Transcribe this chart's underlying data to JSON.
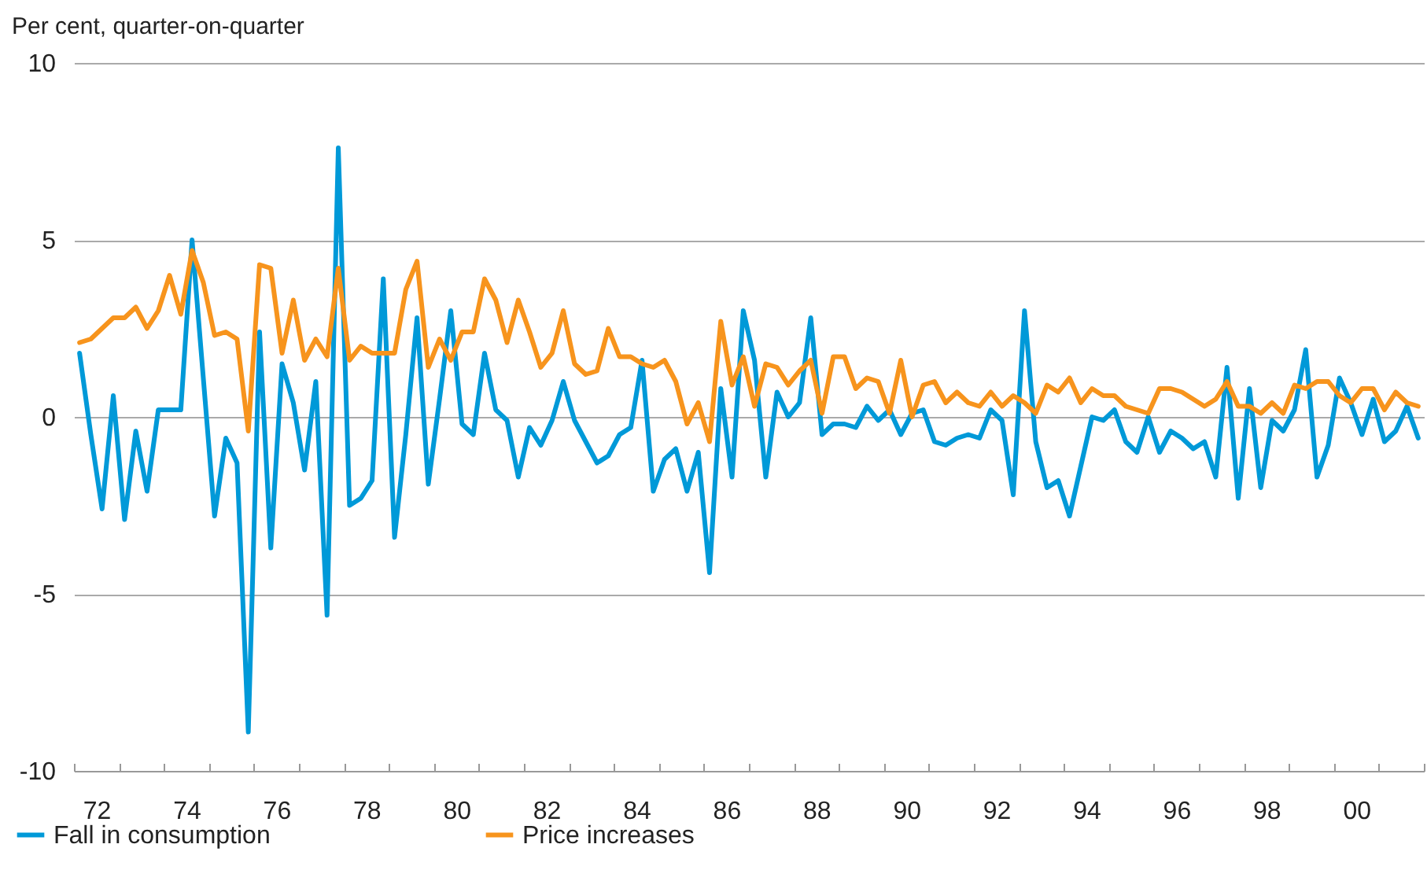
{
  "chart_data": {
    "type": "line",
    "ylabel": "Per cent, quarter-on-quarter",
    "x": [
      1971.625,
      1971.875,
      1972.125,
      1972.375,
      1972.625,
      1972.875,
      1973.125,
      1973.375,
      1973.625,
      1973.875,
      1974.125,
      1974.375,
      1974.625,
      1974.875,
      1975.125,
      1975.375,
      1975.625,
      1975.875,
      1976.125,
      1976.375,
      1976.625,
      1976.875,
      1977.125,
      1977.375,
      1977.625,
      1977.875,
      1978.125,
      1978.375,
      1978.625,
      1978.875,
      1979.125,
      1979.375,
      1979.625,
      1979.875,
      1980.125,
      1980.375,
      1980.625,
      1980.875,
      1981.125,
      1981.375,
      1981.625,
      1981.875,
      1982.125,
      1982.375,
      1982.625,
      1982.875,
      1983.125,
      1983.375,
      1983.625,
      1983.875,
      1984.125,
      1984.375,
      1984.625,
      1984.875,
      1985.125,
      1985.375,
      1985.625,
      1985.875,
      1986.125,
      1986.375,
      1986.625,
      1986.875,
      1987.125,
      1987.375,
      1987.625,
      1987.875,
      1988.125,
      1988.375,
      1988.625,
      1988.875,
      1989.125,
      1989.375,
      1989.625,
      1989.875,
      1990.125,
      1990.375,
      1990.625,
      1990.875,
      1991.125,
      1991.375,
      1991.625,
      1991.875,
      1992.125,
      1992.375,
      1992.625,
      1992.875,
      1993.125,
      1993.375,
      1993.625,
      1993.875,
      1994.125,
      1994.375,
      1994.625,
      1994.875,
      1995.125,
      1995.375,
      1995.625,
      1995.875,
      1996.125,
      1996.375,
      1996.625,
      1996.875,
      1997.125,
      1997.375,
      1997.625,
      1997.875,
      1998.125,
      1998.375,
      1998.625,
      1998.875,
      1999.125,
      1999.375,
      1999.625,
      1999.875,
      2000.125,
      2000.375,
      2000.625,
      2000.875,
      2001.125,
      2001.375
    ],
    "series": [
      {
        "name": "Fall in consumption",
        "color": "#0099d8",
        "values": [
          1.8,
          -0.5,
          -2.6,
          0.6,
          -2.9,
          -0.4,
          -2.1,
          0.2,
          0.2,
          0.2,
          5.0,
          1.1,
          -2.8,
          -0.6,
          -1.3,
          -8.9,
          2.4,
          -3.7,
          1.5,
          0.4,
          -1.5,
          1.0,
          -5.6,
          7.6,
          -2.5,
          -2.3,
          -1.8,
          3.9,
          -3.4,
          -0.5,
          2.8,
          -1.9,
          0.5,
          3.0,
          -0.2,
          -0.5,
          1.8,
          0.2,
          -0.1,
          -1.7,
          -0.3,
          -0.8,
          -0.1,
          1.0,
          -0.1,
          -0.7,
          -1.3,
          -1.1,
          -0.5,
          -0.3,
          1.6,
          -2.1,
          -1.2,
          -0.9,
          -2.1,
          -1.0,
          -4.4,
          0.8,
          -1.7,
          3.0,
          1.6,
          -1.7,
          0.7,
          0.0,
          0.4,
          2.8,
          -0.5,
          -0.2,
          -0.2,
          -0.3,
          0.3,
          -0.1,
          0.2,
          -0.5,
          0.1,
          0.2,
          -0.7,
          -0.8,
          -0.6,
          -0.5,
          -0.6,
          0.2,
          -0.1,
          -2.2,
          3.0,
          -0.7,
          -2.0,
          -1.8,
          -2.8,
          -1.4,
          0.0,
          -0.1,
          0.2,
          -0.7,
          -1.0,
          0.0,
          -1.0,
          -0.4,
          -0.6,
          -0.9,
          -0.7,
          -1.7,
          1.4,
          -2.3,
          0.8,
          -2.0,
          -0.1,
          -0.4,
          0.2,
          1.9,
          -1.7,
          -0.8,
          1.1,
          0.4,
          -0.5,
          0.5,
          -0.7,
          -0.4,
          0.3,
          -0.6
        ]
      },
      {
        "name": "Price increases",
        "color": "#f7941d",
        "values": [
          2.1,
          2.2,
          2.5,
          2.8,
          2.8,
          3.1,
          2.5,
          3.0,
          4.0,
          2.9,
          4.7,
          3.8,
          2.3,
          2.4,
          2.2,
          -0.4,
          4.3,
          4.2,
          1.8,
          3.3,
          1.6,
          2.2,
          1.7,
          4.2,
          1.6,
          2.0,
          1.8,
          1.8,
          1.8,
          3.6,
          4.4,
          1.4,
          2.2,
          1.6,
          2.4,
          2.4,
          3.9,
          3.3,
          2.1,
          3.3,
          2.4,
          1.4,
          1.8,
          3.0,
          1.5,
          1.2,
          1.3,
          2.5,
          1.7,
          1.7,
          1.5,
          1.4,
          1.6,
          1.0,
          -0.2,
          0.4,
          -0.7,
          2.7,
          0.9,
          1.7,
          0.3,
          1.5,
          1.4,
          0.9,
          1.3,
          1.6,
          0.1,
          1.7,
          1.7,
          0.8,
          1.1,
          1.0,
          0.1,
          1.6,
          0.0,
          0.9,
          1.0,
          0.4,
          0.7,
          0.4,
          0.3,
          0.7,
          0.3,
          0.6,
          0.4,
          0.1,
          0.9,
          0.7,
          1.1,
          0.4,
          0.8,
          0.6,
          0.6,
          0.3,
          0.2,
          0.1,
          0.8,
          0.8,
          0.7,
          0.5,
          0.3,
          0.5,
          1.0,
          0.3,
          0.3,
          0.1,
          0.4,
          0.1,
          0.9,
          0.8,
          1.0,
          1.0,
          0.6,
          0.4,
          0.8,
          0.8,
          0.2,
          0.7,
          0.4,
          0.3
        ]
      }
    ],
    "xlim": [
      1971.5,
      2001.5
    ],
    "xticks": [
      {
        "value": 1971.5,
        "label": null
      },
      {
        "value": 1972,
        "label": "72"
      },
      {
        "value": 1972.5,
        "label": null
      },
      {
        "value": 1973.5,
        "label": null
      },
      {
        "value": 1974,
        "label": "74"
      },
      {
        "value": 1974.5,
        "label": null
      },
      {
        "value": 1975.5,
        "label": null
      },
      {
        "value": 1976,
        "label": "76"
      },
      {
        "value": 1976.5,
        "label": null
      },
      {
        "value": 1977.5,
        "label": null
      },
      {
        "value": 1978,
        "label": "78"
      },
      {
        "value": 1978.5,
        "label": null
      },
      {
        "value": 1979.5,
        "label": null
      },
      {
        "value": 1980,
        "label": "80"
      },
      {
        "value": 1980.5,
        "label": null
      },
      {
        "value": 1981.5,
        "label": null
      },
      {
        "value": 1982,
        "label": "82"
      },
      {
        "value": 1982.5,
        "label": null
      },
      {
        "value": 1983.5,
        "label": null
      },
      {
        "value": 1984,
        "label": "84"
      },
      {
        "value": 1984.5,
        "label": null
      },
      {
        "value": 1985.5,
        "label": null
      },
      {
        "value": 1986,
        "label": "86"
      },
      {
        "value": 1986.5,
        "label": null
      },
      {
        "value": 1987.5,
        "label": null
      },
      {
        "value": 1988,
        "label": "88"
      },
      {
        "value": 1988.5,
        "label": null
      },
      {
        "value": 1989.5,
        "label": null
      },
      {
        "value": 1990,
        "label": "90"
      },
      {
        "value": 1990.5,
        "label": null
      },
      {
        "value": 1991.5,
        "label": null
      },
      {
        "value": 1992,
        "label": "92"
      },
      {
        "value": 1992.5,
        "label": null
      },
      {
        "value": 1993.5,
        "label": null
      },
      {
        "value": 1994,
        "label": "94"
      },
      {
        "value": 1994.5,
        "label": null
      },
      {
        "value": 1995.5,
        "label": null
      },
      {
        "value": 1996,
        "label": "96"
      },
      {
        "value": 1996.5,
        "label": null
      },
      {
        "value": 1997.5,
        "label": null
      },
      {
        "value": 1998,
        "label": "98"
      },
      {
        "value": 1998.5,
        "label": null
      },
      {
        "value": 1999.5,
        "label": null
      },
      {
        "value": 2000,
        "label": "00"
      },
      {
        "value": 2000.5,
        "label": null
      },
      {
        "value": 2001.5,
        "label": null
      }
    ],
    "ylim": [
      -10,
      10
    ],
    "yticks": [
      -10,
      -5,
      0,
      5,
      10
    ],
    "grid": "y",
    "legend": "bottom",
    "line_style": "solid"
  }
}
